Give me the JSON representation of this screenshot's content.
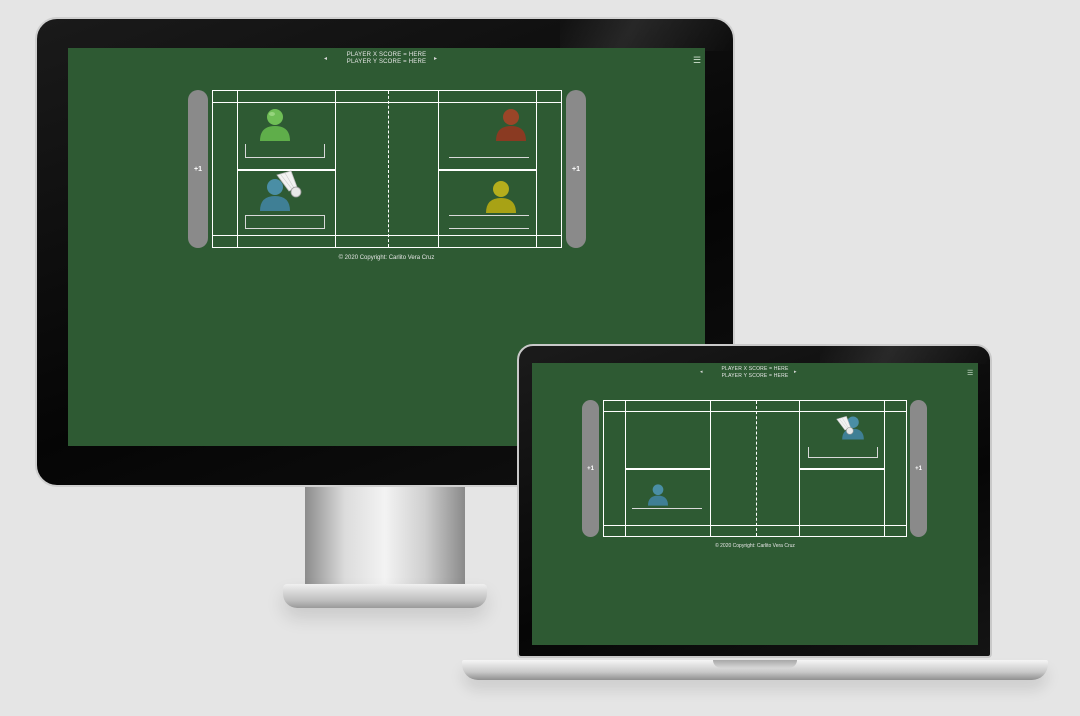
{
  "desktop": {
    "score_line_1": "PLAYER X SCORE = HERE",
    "score_line_2": "PLAYER Y SCORE = HERE",
    "left_button": "+1",
    "right_button": "+1",
    "footer": "© 2020 Copyright: Carlito Vera Cruz"
  },
  "laptop": {
    "score_line_1": "PLAYER X SCORE = HERE",
    "score_line_2": "PLAYER Y SCORE = HERE",
    "left_button": "+1",
    "right_button": "+1",
    "footer": "© 2020 Copyright: Carlito Vera Cruz"
  },
  "colors": {
    "court_green": "#2e5a33",
    "button_gray": "#8a8a8a",
    "player_green": "#5fae4a",
    "player_red": "#8a3a22",
    "player_yellow": "#a8a215",
    "player_blue": "#3f7f95"
  },
  "icons": {
    "arrow_left": "◂",
    "arrow_right": "▸",
    "menu": "☰"
  }
}
